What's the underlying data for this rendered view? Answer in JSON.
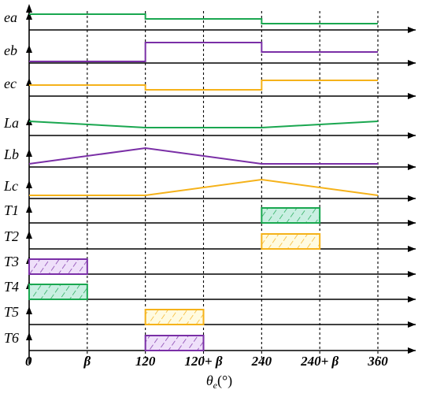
{
  "chart_data": {
    "type": "line",
    "x_ticks": [
      "0",
      "β",
      "120",
      "120+ β",
      "240",
      "240+ β",
      "360"
    ],
    "x_label": {
      "main": "θ",
      "sub": "e",
      "unit": "(°)"
    },
    "colors": {
      "green": "#1aa750",
      "purple": "#7a2fa6",
      "yellow": "#f5b21a",
      "green_fill": "#c9efe2",
      "yellow_fill": "#fffbe0",
      "purple_fill": "#efe0fa"
    },
    "rows": [
      {
        "label": "ea",
        "color": "green",
        "kind": "step",
        "points": [
          [
            0,
            1
          ],
          [
            120,
            1
          ],
          [
            120,
            0
          ],
          [
            240,
            0
          ],
          [
            240,
            -1
          ],
          [
            360,
            -1
          ]
        ]
      },
      {
        "label": "eb",
        "color": "purple",
        "kind": "step",
        "points": [
          [
            0,
            -1
          ],
          [
            120,
            -1
          ],
          [
            120,
            1
          ],
          [
            240,
            1
          ],
          [
            240,
            0
          ],
          [
            360,
            0
          ]
        ]
      },
      {
        "label": "ec",
        "color": "yellow",
        "kind": "step",
        "points": [
          [
            0,
            0
          ],
          [
            120,
            0
          ],
          [
            120,
            -1
          ],
          [
            240,
            -1
          ],
          [
            240,
            1
          ],
          [
            360,
            1
          ]
        ]
      },
      {
        "label": "La",
        "color": "green",
        "kind": "line",
        "points": [
          [
            0,
            1
          ],
          [
            120,
            -1
          ],
          [
            240,
            -1
          ],
          [
            360,
            1
          ]
        ]
      },
      {
        "label": "Lb",
        "color": "purple",
        "kind": "line",
        "points": [
          [
            0,
            -1
          ],
          [
            120,
            1
          ],
          [
            240,
            -1
          ],
          [
            360,
            -1
          ]
        ]
      },
      {
        "label": "Lc",
        "color": "yellow",
        "kind": "line",
        "points": [
          [
            0,
            -1
          ],
          [
            120,
            -1
          ],
          [
            240,
            1
          ],
          [
            360,
            -1
          ]
        ]
      },
      {
        "label": "T1",
        "color": "green",
        "kind": "pulse",
        "on": [
          240,
          300
        ]
      },
      {
        "label": "T2",
        "color": "yellow",
        "kind": "pulse",
        "on": [
          240,
          300
        ]
      },
      {
        "label": "T3",
        "color": "purple",
        "kind": "pulse",
        "on": [
          0,
          60
        ]
      },
      {
        "label": "T4",
        "color": "green",
        "kind": "pulse",
        "on": [
          0,
          60
        ]
      },
      {
        "label": "T5",
        "color": "yellow",
        "kind": "pulse",
        "on": [
          120,
          180
        ]
      },
      {
        "label": "T6",
        "color": "purple",
        "kind": "pulse",
        "on": [
          120,
          180
        ]
      }
    ]
  }
}
